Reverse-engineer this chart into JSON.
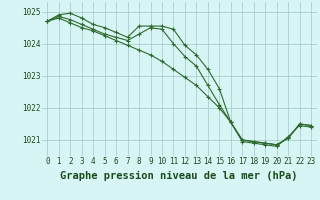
{
  "title": "Graphe pression niveau de la mer (hPa)",
  "xlabel_hours": [
    0,
    1,
    2,
    3,
    4,
    5,
    6,
    7,
    8,
    9,
    10,
    11,
    12,
    13,
    14,
    15,
    16,
    17,
    18,
    19,
    20,
    21,
    22,
    23
  ],
  "line1": [
    1024.7,
    1024.9,
    1024.95,
    1024.8,
    1024.6,
    1024.5,
    1024.35,
    1024.2,
    1024.55,
    1024.55,
    1024.55,
    1024.45,
    1023.95,
    1023.65,
    1023.2,
    1022.6,
    1021.55,
    1021.0,
    1020.95,
    1020.9,
    1020.85,
    1021.05,
    1021.5,
    1021.45
  ],
  "line2": [
    1024.7,
    1024.85,
    1024.75,
    1024.6,
    1024.45,
    1024.3,
    1024.2,
    1024.1,
    1024.3,
    1024.5,
    1024.45,
    1024.0,
    1023.6,
    1023.3,
    1022.7,
    1022.1,
    1021.55,
    1021.0,
    1020.95,
    1020.9,
    1020.85,
    1021.05,
    1021.5,
    1021.45
  ],
  "line3": [
    1024.7,
    1024.8,
    1024.65,
    1024.5,
    1024.4,
    1024.25,
    1024.1,
    1023.95,
    1023.8,
    1023.65,
    1023.45,
    1023.2,
    1022.95,
    1022.7,
    1022.35,
    1022.0,
    1021.55,
    1020.95,
    1020.9,
    1020.85,
    1020.8,
    1021.1,
    1021.45,
    1021.4
  ],
  "line_color": "#2d6a2d",
  "bg_color": "#d8f5f5",
  "grid_color": "#a0c8c8",
  "ylim_min": 1020.5,
  "ylim_max": 1025.3,
  "yticks": [
    1021,
    1022,
    1023,
    1024,
    1025
  ],
  "title_color": "#1a4a1a",
  "tick_fontsize": 5.5,
  "title_fontsize": 7.5
}
